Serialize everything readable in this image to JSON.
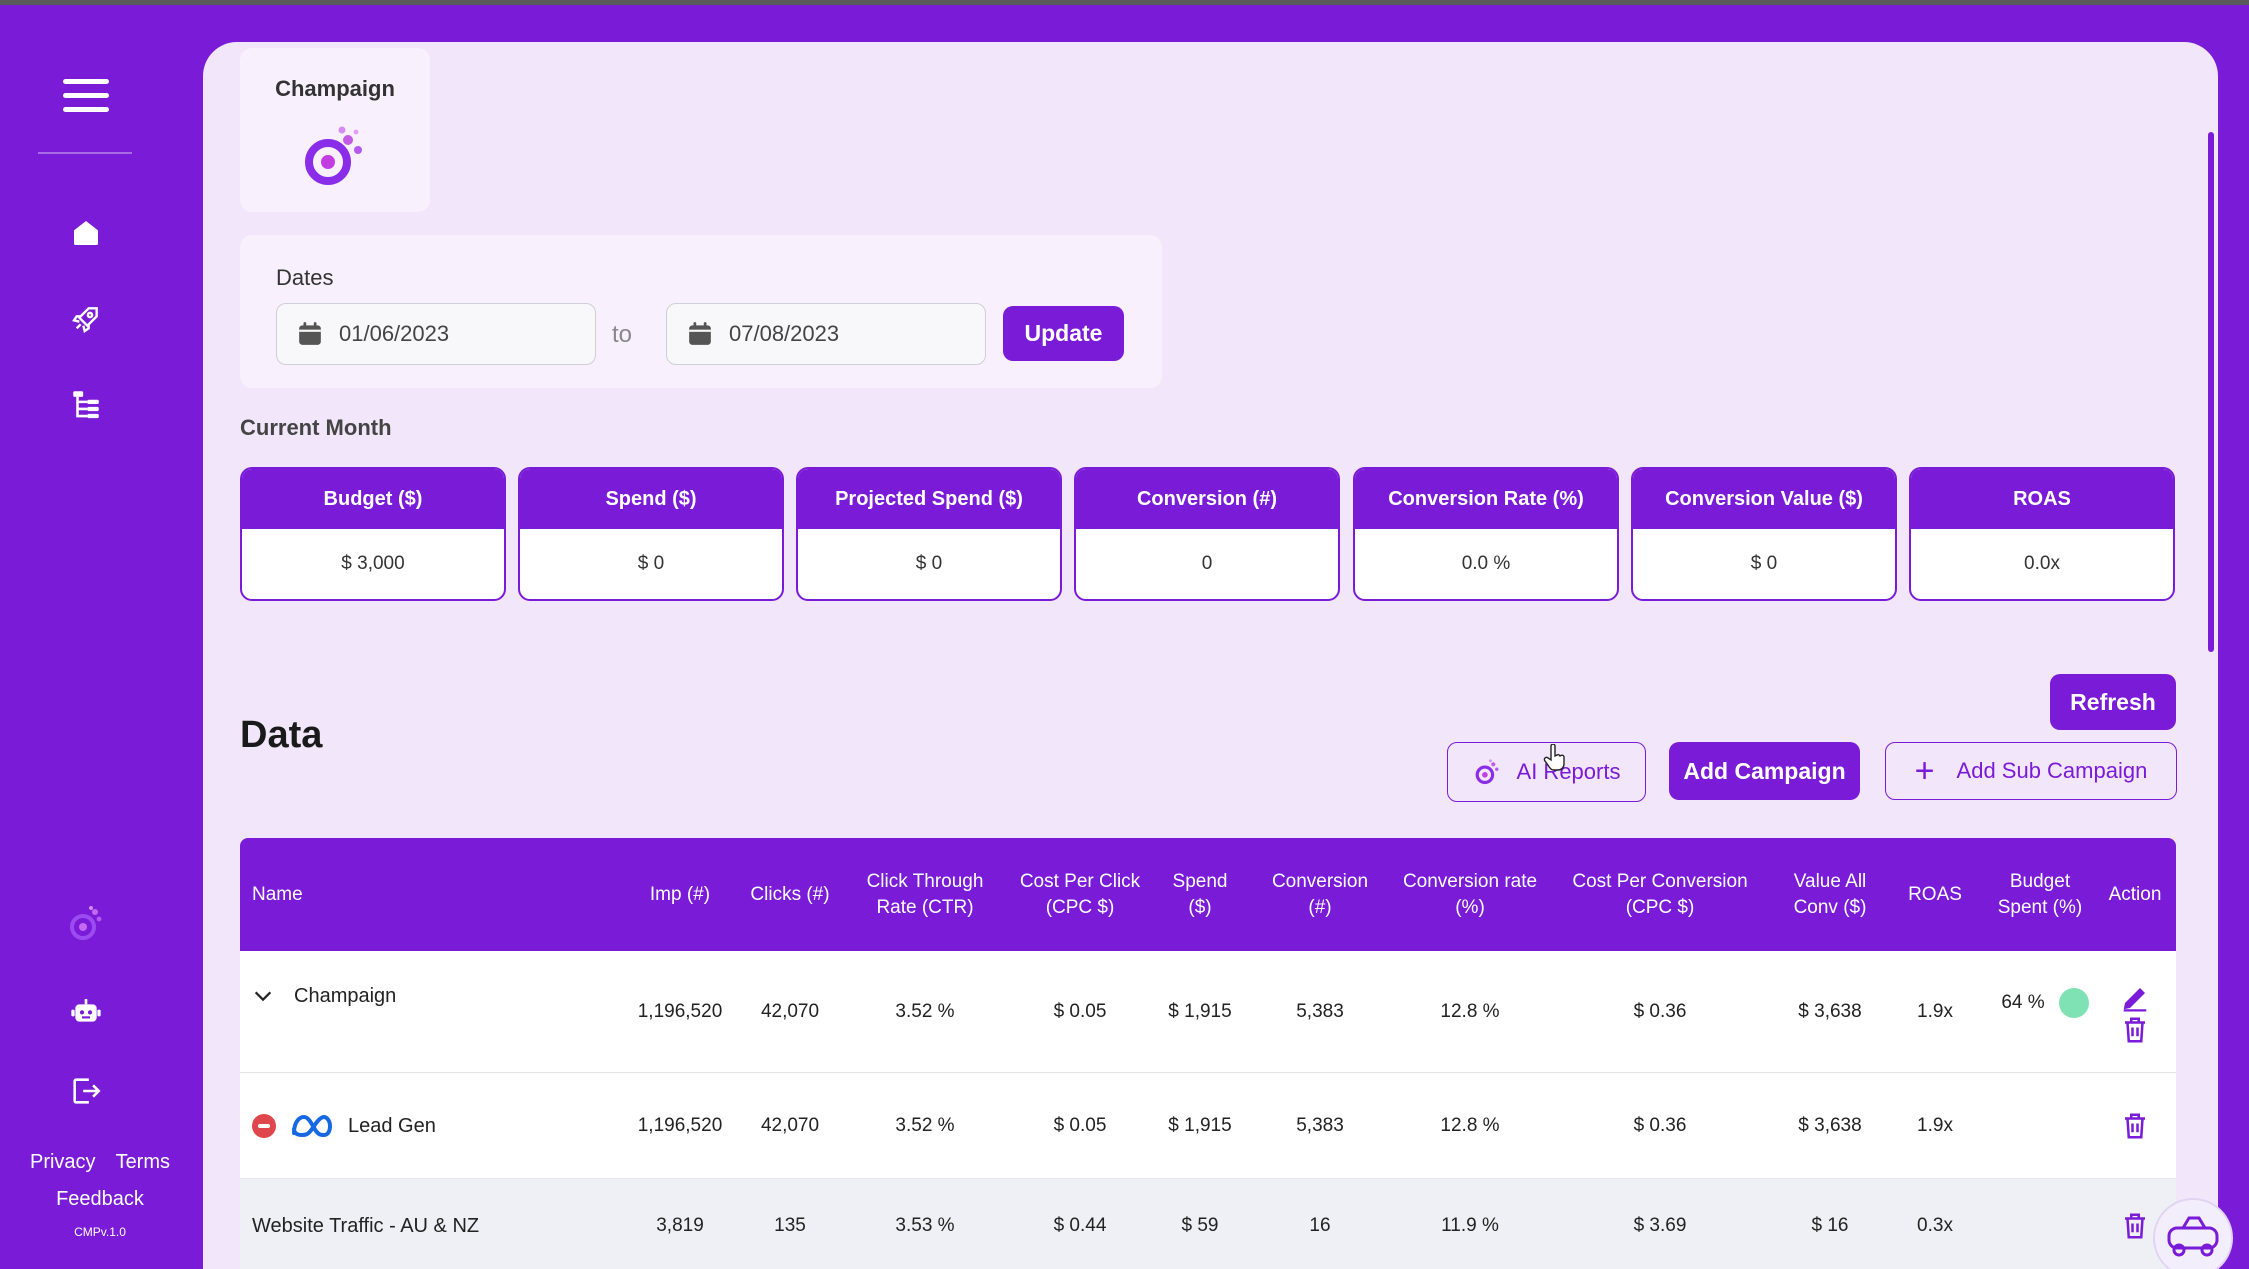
{
  "sidebar": {
    "menu_icon": "hamburger-menu-icon",
    "nav": [
      "home-icon",
      "rocket-icon",
      "tree-structure-icon"
    ],
    "bottom": [
      "brand-logo-icon",
      "robot-icon",
      "logout-icon"
    ],
    "privacy_label": "Privacy",
    "terms_label": "Terms",
    "feedback_label": "Feedback",
    "version": "CMPv.1.0"
  },
  "header_card": {
    "title": "Champaign"
  },
  "dates": {
    "label": "Dates",
    "from": "01/06/2023",
    "to_label": "to",
    "to": "07/08/2023",
    "update_label": "Update"
  },
  "current_month": {
    "label": "Current Month",
    "metrics": [
      {
        "label": "Budget ($)",
        "value": "$ 3,000"
      },
      {
        "label": "Spend ($)",
        "value": "$ 0"
      },
      {
        "label": "Projected Spend ($)",
        "value": "$ 0"
      },
      {
        "label": "Conversion (#)",
        "value": "0"
      },
      {
        "label": "Conversion Rate (%)",
        "value": "0.0 %"
      },
      {
        "label": "Conversion Value ($)",
        "value": "$ 0"
      },
      {
        "label": "ROAS",
        "value": "0.0x"
      }
    ]
  },
  "data_section": {
    "title": "Data",
    "refresh_label": "Refresh",
    "ai_reports_label": "AI Reports",
    "add_campaign_label": "Add Campaign",
    "add_sub_campaign_label": "Add Sub Campaign"
  },
  "table": {
    "columns": {
      "name": "Name",
      "imp": "Imp (#)",
      "clicks": "Clicks (#)",
      "ctr": "Click Through Rate (CTR)",
      "cpc": "Cost Per Click (CPC $)",
      "spend": "Spend ($)",
      "conversion": "Conversion (#)",
      "conv_rate": "Conversion rate (%)",
      "cost_per_conv": "Cost Per Conversion (CPC $)",
      "value_all": "Value All Conv ($)",
      "roas": "ROAS",
      "budget_spent": "Budget Spent (%)",
      "action": "Action"
    },
    "rows": [
      {
        "name": "Champaign",
        "imp": "1,196,520",
        "clicks": "42,070",
        "ctr": "3.52 %",
        "cpc": "$ 0.05",
        "spend": "$ 1,915",
        "conversion": "5,383",
        "conv_rate": "12.8 %",
        "cost_per_conv": "$ 0.36",
        "value_all": "$ 3,638",
        "roas": "1.9x",
        "budget_spent": "64 %"
      },
      {
        "name": "Lead Gen",
        "imp": "1,196,520",
        "clicks": "42,070",
        "ctr": "3.52 %",
        "cpc": "$ 0.05",
        "spend": "$ 1,915",
        "conversion": "5,383",
        "conv_rate": "12.8 %",
        "cost_per_conv": "$ 0.36",
        "value_all": "$ 3,638",
        "roas": "1.9x",
        "budget_spent": ""
      },
      {
        "name": "Website Traffic - AU & NZ",
        "imp": "3,819",
        "clicks": "135",
        "ctr": "3.53 %",
        "cpc": "$ 0.44",
        "spend": "$ 59",
        "conversion": "16",
        "conv_rate": "11.9 %",
        "cost_per_conv": "$ 3.69",
        "value_all": "$ 16",
        "roas": "0.3x",
        "budget_spent": ""
      }
    ]
  },
  "colors": {
    "primary": "#7a1bd8",
    "panel": "#f1e6fa",
    "card": "#f8f0fd",
    "danger": "#e0474c",
    "status_ok": "#7ee2b4"
  }
}
